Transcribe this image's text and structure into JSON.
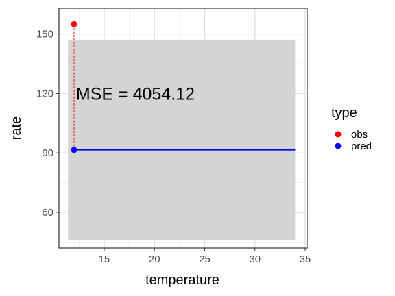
{
  "chart_data": {
    "type": "line",
    "xlabel": "temperature",
    "ylabel": "rate",
    "xlim": [
      10.5,
      35.2
    ],
    "ylim": [
      42,
      163
    ],
    "x_ticks": [
      15,
      20,
      25,
      30,
      35
    ],
    "y_ticks": [
      60,
      90,
      120,
      150
    ],
    "grid": true,
    "ribbon": {
      "x": [
        11.4,
        34.0
      ],
      "y_low": 46,
      "y_high": 147,
      "color": "#d4d4d4"
    },
    "series": [
      {
        "name": "obs",
        "color": "#ff0000",
        "points": [
          {
            "x": 12.0,
            "y": 155
          }
        ]
      },
      {
        "name": "pred",
        "color": "#0000ff",
        "points": [
          {
            "x": 12.0,
            "y": 91.5
          }
        ],
        "line": {
          "x": [
            12.0,
            34.0
          ],
          "y": [
            91.5,
            91.5
          ]
        }
      }
    ],
    "residual": {
      "x": 12.0,
      "y_from": 91.5,
      "y_to": 155,
      "color": "#ff0000",
      "style": "dashed"
    },
    "annotation": {
      "text": "MSE = 4054.12",
      "x": 12.2,
      "y": 120
    },
    "legend": {
      "title": "type",
      "placement": "right",
      "entries": [
        {
          "label": "obs",
          "color": "#ff0000"
        },
        {
          "label": "pred",
          "color": "#0000ff"
        }
      ]
    }
  }
}
